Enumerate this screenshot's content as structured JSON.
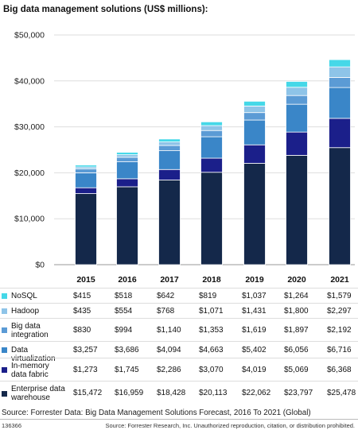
{
  "chart_data": {
    "type": "bar",
    "stacked": true,
    "title": "Big data management solutions (US$ millions):",
    "categories": [
      "2015",
      "2016",
      "2017",
      "2018",
      "2019",
      "2020",
      "2021"
    ],
    "yticks": [
      "$0",
      "$10,000",
      "$20,000",
      "$30,000",
      "$40,000",
      "$50,000"
    ],
    "ylim": [
      0,
      50000
    ],
    "series": [
      {
        "name": "Enterprise data warehouse",
        "color": "#14284a",
        "values": [
          15472,
          16959,
          18428,
          20113,
          22062,
          23797,
          25478
        ],
        "labels": [
          "$15,472",
          "$16,959",
          "$18,428",
          "$20,113",
          "$22,062",
          "$23,797",
          "$25,478"
        ]
      },
      {
        "name": "In-memory data fabric",
        "color": "#1b1f8a",
        "values": [
          1273,
          1745,
          2286,
          3070,
          4019,
          5069,
          6368
        ],
        "labels": [
          "$1,273",
          "$1,745",
          "$2,286",
          "$3,070",
          "$4,019",
          "$5,069",
          "$6,368"
        ]
      },
      {
        "name": "Data virtualization",
        "color": "#3a86c8",
        "values": [
          3257,
          3686,
          4094,
          4663,
          5402,
          6056,
          6716
        ],
        "labels": [
          "$3,257",
          "$3,686",
          "$4,094",
          "$4,663",
          "$5,402",
          "$6,056",
          "$6,716"
        ]
      },
      {
        "name": "Big data integration",
        "color": "#5b9bd5",
        "values": [
          830,
          994,
          1140,
          1353,
          1619,
          1897,
          2192
        ],
        "labels": [
          "$830",
          "$994",
          "$1,140",
          "$1,353",
          "$1,619",
          "$1,897",
          "$2,192"
        ]
      },
      {
        "name": "Hadoop",
        "color": "#8ec4e8",
        "values": [
          435,
          554,
          768,
          1071,
          1431,
          1800,
          2297
        ],
        "labels": [
          "$435",
          "$554",
          "$768",
          "$1,071",
          "$1,431",
          "$1,800",
          "$2,297"
        ]
      },
      {
        "name": "NoSQL",
        "color": "#45d8e8",
        "values": [
          415,
          518,
          642,
          819,
          1037,
          1264,
          1579
        ],
        "labels": [
          "$415",
          "$518",
          "$642",
          "$819",
          "$1,037",
          "$1,264",
          "$1,579"
        ]
      }
    ],
    "legend_order": [
      "NoSQL",
      "Hadoop",
      "Big data integration",
      "Data virtualization",
      "In-memory data fabric",
      "Enterprise data warehouse"
    ],
    "legend_display": {
      "NoSQL": [
        "NoSQL"
      ],
      "Hadoop": [
        "Hadoop"
      ],
      "Big data integration": [
        "Big data",
        "integration"
      ],
      "Data virtualization": [
        "Data virtualization"
      ],
      "In-memory data fabric": [
        "In-memory",
        "data fabric"
      ],
      "Enterprise data warehouse": [
        "Enterprise data",
        "warehouse"
      ]
    }
  },
  "source": "Source: Forrester Data: Big Data Management Solutions Forecast, 2016 To 2021 (Global)",
  "footer_id": "136366",
  "footer_note": "Source: Forrester Research, Inc. Unauthorized reproduction, citation, or distribution prohibited."
}
